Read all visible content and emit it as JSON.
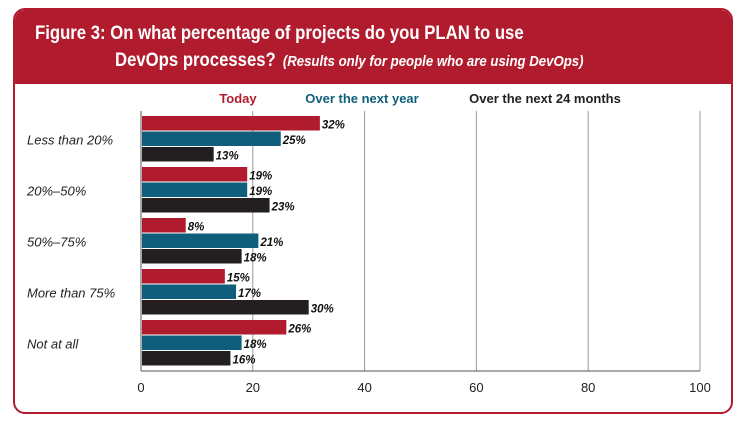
{
  "figure": {
    "title_line1": "Figure 3: On what percentage of projects do you PLAN to use",
    "title_line2": "DevOps processes?",
    "subtitle": "(Results only for people who are using DevOps)"
  },
  "colors": {
    "header": "#b01c2e",
    "today": "#b01c2e",
    "next_year": "#0f5f7c",
    "next_24": "#231f20"
  },
  "chart_data": {
    "type": "bar",
    "orientation": "horizontal",
    "categories": [
      "Less than 20%",
      "20%–50%",
      "50%–75%",
      "More than 75%",
      "Not at all"
    ],
    "series": [
      {
        "name": "Today",
        "values": [
          32,
          19,
          8,
          15,
          26
        ],
        "labels": [
          "32%",
          "19%",
          "8%",
          "15%",
          "26%"
        ]
      },
      {
        "name": "Over the next year",
        "values": [
          25,
          19,
          21,
          17,
          18
        ],
        "labels": [
          "25%",
          "19%",
          "21%",
          "17%",
          "18%"
        ]
      },
      {
        "name": "Over the next 24 months",
        "values": [
          13,
          23,
          18,
          30,
          16
        ],
        "labels": [
          "13%",
          "23%",
          "18%",
          "30%",
          "16%"
        ]
      }
    ],
    "xlim": [
      0,
      100
    ],
    "xticks": [
      "0",
      "20",
      "40",
      "60",
      "80",
      "100"
    ],
    "grid": true,
    "legend": "top"
  }
}
